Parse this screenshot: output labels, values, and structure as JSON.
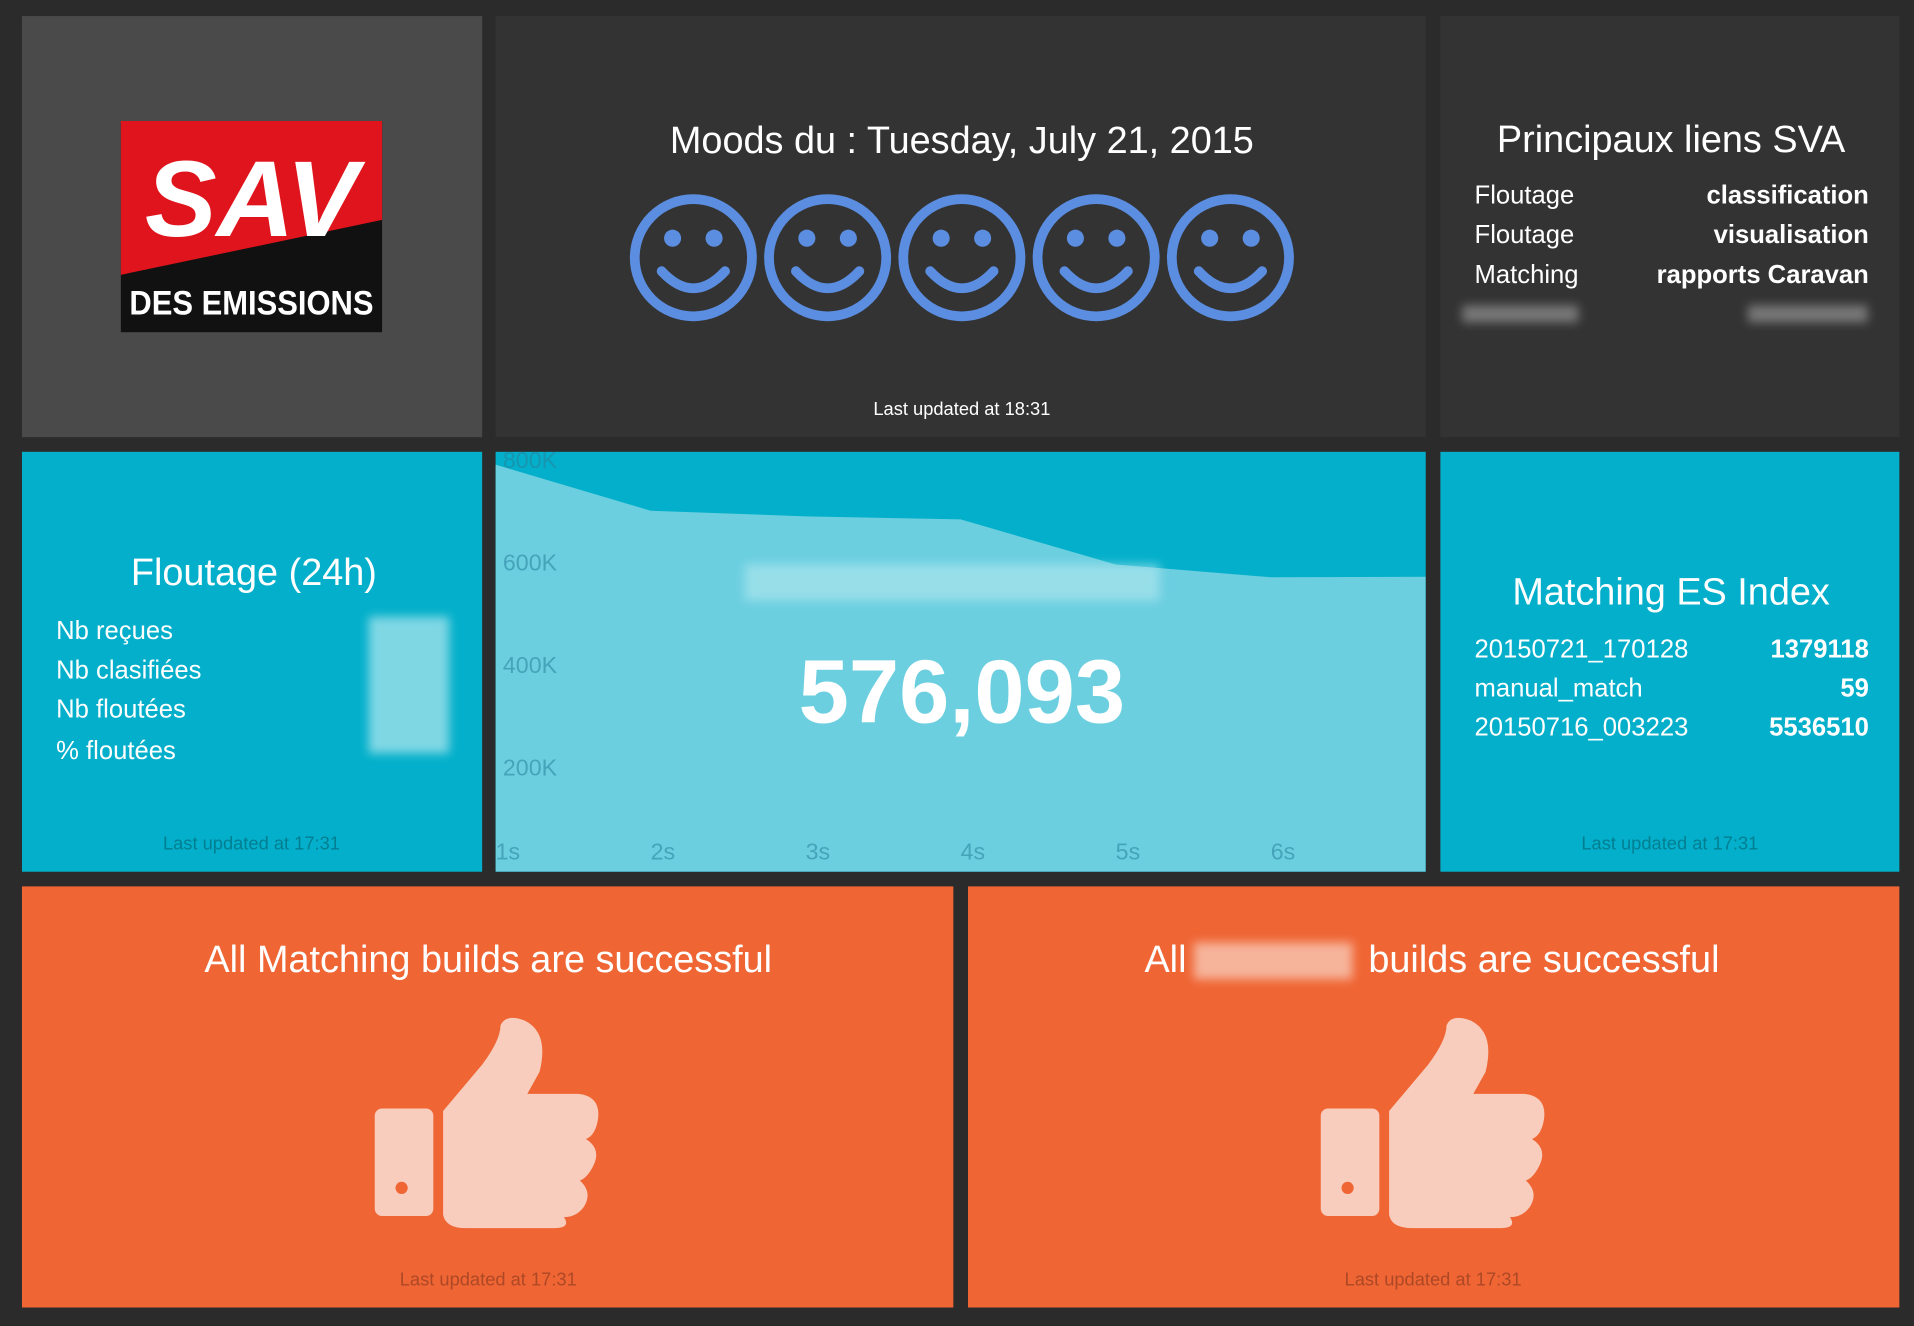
{
  "logo": {
    "line1": "SAV",
    "line2": "DES EMISSIONS"
  },
  "moods": {
    "title": "Moods du : Tuesday, July 21, 2015",
    "updated": "Last updated at 18:31"
  },
  "links": {
    "title": "Principaux liens SVA",
    "rows": [
      [
        "Floutage",
        "classification"
      ],
      [
        "Floutage",
        "visualisation"
      ],
      [
        "Matching",
        "rapports Caravan"
      ]
    ]
  },
  "floutage": {
    "title": "Floutage (24h)",
    "labels": [
      "Nb reçues",
      "Nb clasifiées",
      "Nb floutées",
      "% floutées"
    ],
    "updated": "Last updated at 17:31"
  },
  "chart_data": {
    "type": "area",
    "current": "576,093",
    "x": [
      1,
      2,
      3,
      4,
      5,
      6,
      7
    ],
    "values": [
      795000,
      705000,
      694000,
      688000,
      600000,
      575000,
      576093
    ],
    "color": "#6bcfe0",
    "xlim": [
      1,
      7
    ],
    "xticks": [
      {
        "value": 1,
        "label": "1s"
      },
      {
        "value": 2,
        "label": "2s"
      },
      {
        "value": 3,
        "label": "3s"
      },
      {
        "value": 4,
        "label": "4s"
      },
      {
        "value": 5,
        "label": "5s"
      },
      {
        "value": 6,
        "label": "6s"
      }
    ],
    "ylim": [
      0,
      820000
    ],
    "yticks": [
      {
        "value": 200000,
        "label": "200K"
      },
      {
        "value": 400000,
        "label": "400K"
      },
      {
        "value": 600000,
        "label": "600K"
      },
      {
        "value": 800000,
        "label": "800K"
      }
    ]
  },
  "matching": {
    "title": "Matching ES Index",
    "rows": [
      [
        "20150721_170128",
        1379118
      ],
      [
        "manual_match",
        59
      ],
      [
        "20150716_003223",
        5536510
      ]
    ],
    "updated": "Last updated at 17:31"
  },
  "builds": [
    {
      "title": "All Matching builds are successful",
      "updated": "Last updated at 17:31"
    },
    {
      "prefix": "All",
      "suffix": "builds are successful",
      "updated": "Last updated at 17:31"
    }
  ]
}
